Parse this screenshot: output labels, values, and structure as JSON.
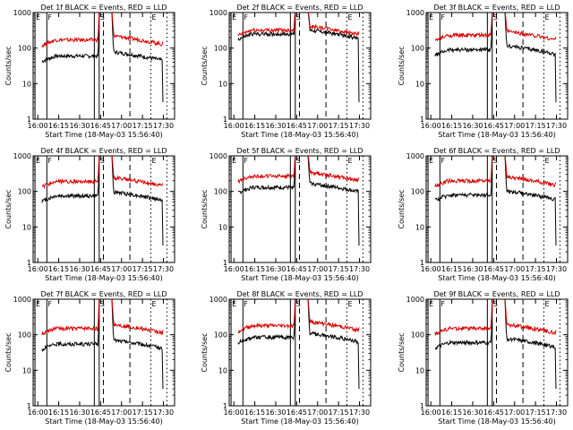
{
  "chart_data": {
    "type": "line",
    "yscale": "log",
    "ylim": [
      1,
      1000
    ],
    "xlim": [
      "15:56:40",
      "17:38:00"
    ],
    "x_ticks": [
      "16:00",
      "16:15",
      "16:30",
      "16:45",
      "17:00",
      "17:15",
      "17:30"
    ],
    "y_ticks": [
      "1",
      "10",
      "100",
      "1000"
    ],
    "ylabel": "Counts/sec",
    "xlabel": "Start Time (18-May-03 15:56:40)",
    "markers": [
      {
        "label": "E",
        "time": "15:58:00",
        "style": "solid"
      },
      {
        "label": "F",
        "time": "16:06:30",
        "style": "solid"
      },
      {
        "label": "",
        "time": "16:40:30",
        "style": "solid"
      },
      {
        "label": "S",
        "time": "16:44:00",
        "style": "solid"
      },
      {
        "label": "",
        "time": "16:47:00",
        "style": "dashed"
      },
      {
        "label": "",
        "time": "17:06:00",
        "style": "dashed"
      },
      {
        "label": "E",
        "time": "17:21:00",
        "style": "dotted"
      },
      {
        "label": "",
        "time": "17:32:30",
        "style": "dotted"
      }
    ],
    "panels": [
      {
        "title": "Det 1f BLACK = Events, RED = LLD",
        "series": [
          {
            "name": "Events",
            "color": "#000000",
            "level": 60
          },
          {
            "name": "LLD",
            "color": "#dd0000",
            "level": 170
          }
        ]
      },
      {
        "title": "Det 2f BLACK = Events, RED = LLD",
        "series": [
          {
            "name": "Events",
            "color": "#000000",
            "level": 250
          },
          {
            "name": "LLD",
            "color": "#dd0000",
            "level": 320
          }
        ]
      },
      {
        "title": "Det 3f BLACK = Events, RED = LLD",
        "series": [
          {
            "name": "Events",
            "color": "#000000",
            "level": 90
          },
          {
            "name": "LLD",
            "color": "#dd0000",
            "level": 230
          }
        ]
      },
      {
        "title": "Det 4f BLACK = Events, RED = LLD",
        "series": [
          {
            "name": "Events",
            "color": "#000000",
            "level": 75
          },
          {
            "name": "LLD",
            "color": "#dd0000",
            "level": 190
          }
        ]
      },
      {
        "title": "Det 5f BLACK = Events, RED = LLD",
        "series": [
          {
            "name": "Events",
            "color": "#000000",
            "level": 130
          },
          {
            "name": "LLD",
            "color": "#dd0000",
            "level": 270
          }
        ]
      },
      {
        "title": "Det 6f BLACK = Events, RED = LLD",
        "series": [
          {
            "name": "Events",
            "color": "#000000",
            "level": 80
          },
          {
            "name": "LLD",
            "color": "#dd0000",
            "level": 200
          }
        ]
      },
      {
        "title": "Det 7f BLACK = Events, RED = LLD",
        "series": [
          {
            "name": "Events",
            "color": "#000000",
            "level": 55
          },
          {
            "name": "LLD",
            "color": "#dd0000",
            "level": 150
          }
        ]
      },
      {
        "title": "Det 8f BLACK = Events, RED = LLD",
        "series": [
          {
            "name": "Events",
            "color": "#000000",
            "level": 85
          },
          {
            "name": "LLD",
            "color": "#dd0000",
            "level": 180
          }
        ]
      },
      {
        "title": "Det 9f BLACK = Events, RED = LLD",
        "series": [
          {
            "name": "Events",
            "color": "#000000",
            "level": 60
          },
          {
            "name": "LLD",
            "color": "#dd0000",
            "level": 150
          }
        ]
      }
    ]
  }
}
